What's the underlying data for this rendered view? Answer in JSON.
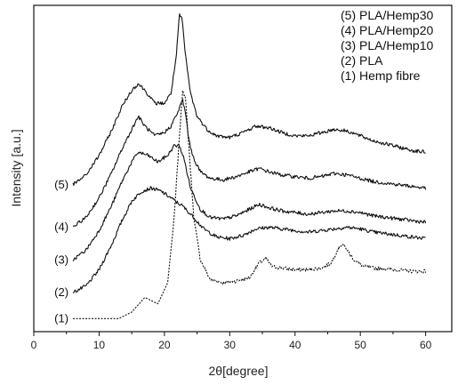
{
  "chart_data": {
    "type": "line",
    "xlabel": "2θ[degree]",
    "ylabel": "Intensity [a.u.]",
    "xlim": [
      0,
      64
    ],
    "ylim": [
      0,
      100
    ],
    "x_ticks": [
      0,
      10,
      20,
      30,
      40,
      50,
      60
    ],
    "y_ticks_shown": false,
    "legend": {
      "placement": "top-right",
      "entries": [
        "(5) PLA/Hemp30",
        "(4) PLA/Hemp20",
        "(3) PLA/Hemp10",
        "(2) PLA",
        "(1) Hemp fibre"
      ]
    },
    "series": [
      {
        "curve_label": "(1)",
        "style": "dotted",
        "x": [
          6,
          13,
          15,
          17,
          19,
          20.5,
          21.5,
          22.3,
          22.8,
          23.2,
          23.8,
          24.5,
          25.5,
          27,
          29,
          31,
          33,
          34.5,
          35.5,
          36.5,
          38,
          40,
          42,
          44,
          45.5,
          46.5,
          47.2,
          48,
          49,
          50.5,
          52,
          55,
          58,
          60
        ],
        "y": [
          4,
          4,
          6,
          10.5,
          8.5,
          15,
          35,
          60,
          74,
          72,
          55,
          35,
          22,
          16,
          15,
          15.5,
          16.5,
          21,
          22.5,
          20,
          19.5,
          19,
          19,
          19.5,
          21,
          25,
          27,
          25,
          22,
          20,
          19.5,
          19,
          18.5,
          18.5
        ]
      },
      {
        "curve_label": "(2)",
        "style": "solid",
        "x": [
          6,
          8,
          10,
          12,
          13.5,
          15,
          16.5,
          18,
          19.5,
          21,
          22,
          22.8,
          23.5,
          24.5,
          26,
          28,
          30,
          32,
          34,
          36,
          38,
          40,
          42,
          44,
          46,
          48,
          50,
          52,
          54,
          56,
          58,
          60
        ],
        "y": [
          12,
          14,
          19,
          27,
          34,
          40,
          43,
          44,
          43,
          41,
          39.5,
          38.5,
          37,
          35,
          31.5,
          29,
          28.5,
          29.5,
          31.5,
          32,
          31.5,
          31,
          30.5,
          31,
          31.5,
          32,
          31.5,
          30.5,
          30,
          29.5,
          29,
          28.5
        ]
      },
      {
        "curve_label": "(3)",
        "style": "solid",
        "x": [
          6,
          8,
          10,
          12,
          13.5,
          15,
          16,
          17.5,
          19,
          20.5,
          21.5,
          22.3,
          23,
          24,
          25.5,
          27,
          29,
          31,
          33,
          34.5,
          36,
          38,
          40,
          42,
          44,
          46,
          48,
          50,
          52,
          54,
          56,
          58,
          60
        ],
        "y": [
          22,
          25,
          31,
          39,
          46,
          52,
          55,
          54,
          52,
          54,
          57,
          57,
          53,
          44,
          37.5,
          35,
          34.5,
          35.5,
          37.5,
          39,
          38,
          37,
          36.5,
          36,
          36.5,
          37,
          37,
          36.5,
          35.5,
          35,
          34.5,
          34,
          33.5
        ]
      },
      {
        "curve_label": "(4)",
        "style": "solid",
        "x": [
          6,
          8,
          10,
          12,
          13.5,
          15,
          16,
          17,
          18.5,
          20,
          21,
          22,
          22.8,
          23.3,
          23.8,
          24.5,
          25.5,
          27,
          29,
          31,
          33,
          34.5,
          36,
          38,
          40,
          42,
          44,
          46,
          48,
          50,
          52,
          54,
          56,
          58,
          60
        ],
        "y": [
          32,
          35,
          41,
          49,
          56,
          62,
          66,
          63,
          60,
          61,
          63,
          67,
          71,
          66,
          58,
          53,
          49,
          47,
          46.5,
          47.5,
          49,
          50,
          49,
          48,
          47.5,
          47,
          47.5,
          48.5,
          48,
          47,
          46,
          45.5,
          45,
          44.5,
          44
        ]
      },
      {
        "curve_label": "(5)",
        "style": "solid",
        "x": [
          6,
          8,
          10,
          12,
          13.5,
          15,
          16,
          17,
          18.5,
          20,
          21,
          21.8,
          22.3,
          22.7,
          23.2,
          24,
          25,
          26.5,
          28,
          30,
          32,
          34,
          36,
          38,
          40,
          42,
          44,
          46,
          48,
          50,
          52,
          54,
          56,
          58,
          60
        ],
        "y": [
          45,
          48,
          54,
          62,
          69,
          74,
          76,
          74,
          70,
          70,
          73,
          84,
          97,
          96,
          85,
          73,
          66,
          62,
          60,
          59.5,
          61,
          63,
          62.5,
          61,
          60,
          60,
          61,
          62,
          61.5,
          60,
          58.5,
          57.5,
          56.5,
          55.5,
          55
        ]
      }
    ]
  }
}
